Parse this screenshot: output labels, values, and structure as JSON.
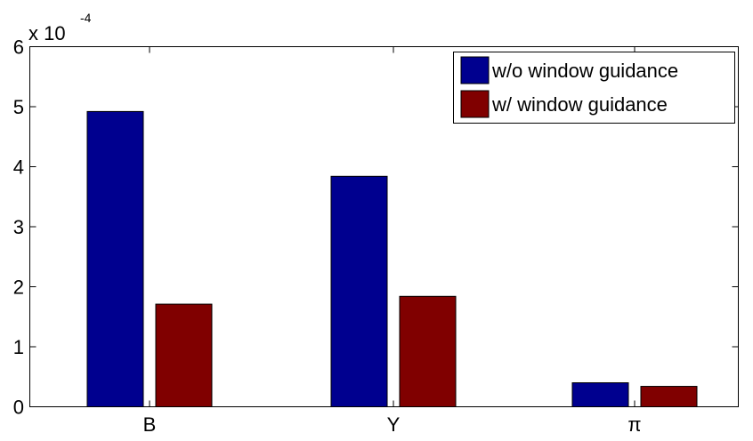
{
  "chart_data": {
    "type": "bar",
    "categories": [
      "B",
      "Y",
      "π"
    ],
    "series": [
      {
        "name": "w/o window guidance",
        "color": "#00008F",
        "values": [
          4.92,
          3.84,
          0.4
        ]
      },
      {
        "name": "w/ window guidance",
        "color": "#800000",
        "values": [
          1.71,
          1.84,
          0.34
        ]
      }
    ],
    "ylim": [
      0,
      6
    ],
    "yticks": [
      "0",
      "1",
      "2",
      "3",
      "4",
      "5",
      "6"
    ],
    "y_multiplier": {
      "base": "x 10",
      "exponent": "-4"
    },
    "legend_position": "top-right",
    "grid": false,
    "title": "",
    "xlabel": "",
    "ylabel": ""
  }
}
